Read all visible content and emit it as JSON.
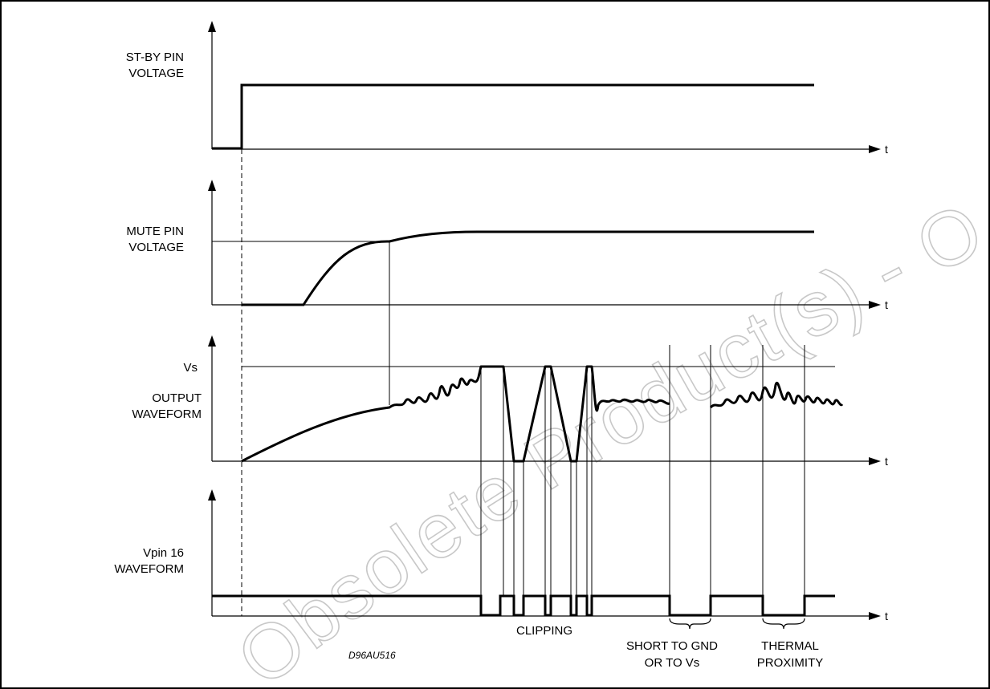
{
  "panels": {
    "standby": {
      "label_line1": "ST-BY PIN",
      "label_line2": "VOLTAGE",
      "axis": "t"
    },
    "mute": {
      "label_line1": "MUTE PIN",
      "label_line2": "VOLTAGE",
      "axis": "t"
    },
    "output": {
      "level_label": "Vs",
      "label_line1": "OUTPUT",
      "label_line2": "WAVEFORM",
      "axis": "t"
    },
    "vpin16": {
      "label_line1": "Vpin 16",
      "label_line2": "WAVEFORM",
      "axis": "t"
    }
  },
  "annotations": {
    "clipping": "CLIPPING",
    "short_line1": "SHORT TO GND",
    "short_line2": "OR TO Vs",
    "thermal_line1": "THERMAL",
    "thermal_line2": "PROXIMITY",
    "code": "D96AU516"
  },
  "watermark": "Obsolete Product(s) - Obsolete Product(s)"
}
